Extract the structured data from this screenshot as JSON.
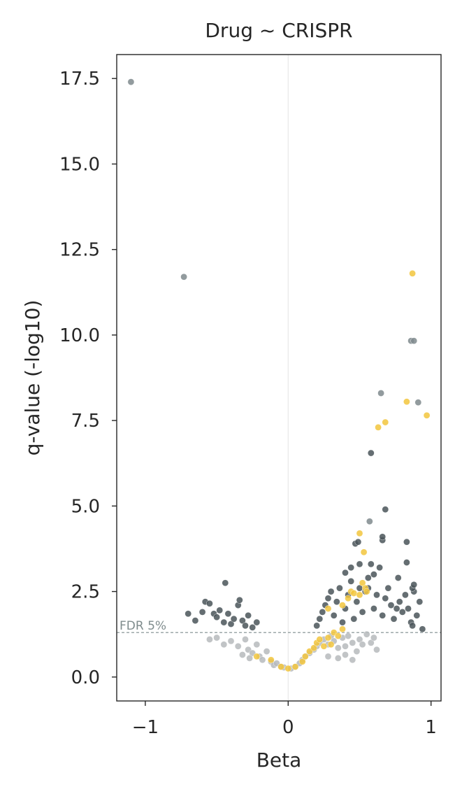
{
  "chart_data": {
    "type": "scatter",
    "title": "Drug ~ CRISPR",
    "xlabel": "Beta",
    "ylabel": "q-value (-log10)",
    "xlim": [
      -1.2,
      1.07
    ],
    "ylim": [
      -0.7,
      18.2
    ],
    "xticks": [
      -1,
      0,
      1
    ],
    "xtick_labels": [
      "−1",
      "0",
      "1"
    ],
    "yticks": [
      0.0,
      2.5,
      5.0,
      7.5,
      10.0,
      12.5,
      15.0,
      17.5
    ],
    "ytick_labels": [
      "0.0",
      "2.5",
      "5.0",
      "7.5",
      "10.0",
      "12.5",
      "15.0",
      "17.5"
    ],
    "grid": false,
    "zero_line": {
      "x": 0,
      "color": "#e8e8e8"
    },
    "threshold": {
      "y": 1.3,
      "label": "FDR 5%",
      "color": "#7f8c8d"
    },
    "series": [
      {
        "color": "#b6babc",
        "points": [
          [
            -0.45,
            0.95
          ],
          [
            -0.4,
            1.05
          ],
          [
            -0.35,
            0.9
          ],
          [
            -0.3,
            1.1
          ],
          [
            -0.28,
            0.8
          ],
          [
            -0.25,
            0.7
          ],
          [
            -0.22,
            0.95
          ],
          [
            -0.2,
            0.6
          ],
          [
            -0.18,
            0.5
          ],
          [
            -0.15,
            0.75
          ],
          [
            -0.12,
            0.45
          ],
          [
            -0.1,
            0.35
          ],
          [
            -0.08,
            0.4
          ],
          [
            -0.05,
            0.3
          ],
          [
            -0.03,
            0.28
          ],
          [
            0.02,
            0.25
          ],
          [
            0.05,
            0.3
          ],
          [
            0.08,
            0.4
          ],
          [
            0.1,
            0.5
          ],
          [
            0.12,
            0.6
          ],
          [
            0.15,
            0.7
          ],
          [
            0.18,
            0.8
          ],
          [
            0.2,
            0.9
          ],
          [
            0.22,
            1.0
          ],
          [
            0.25,
            1.1
          ],
          [
            0.28,
            0.95
          ],
          [
            0.3,
            1.2
          ],
          [
            0.32,
            1.05
          ],
          [
            0.35,
            0.85
          ],
          [
            0.38,
            1.15
          ],
          [
            0.4,
            0.9
          ],
          [
            0.42,
            1.2
          ],
          [
            0.45,
            1.0
          ],
          [
            0.48,
            0.75
          ],
          [
            0.5,
            1.1
          ],
          [
            0.52,
            0.95
          ],
          [
            0.55,
            1.25
          ],
          [
            0.58,
            1.0
          ],
          [
            0.6,
            1.15
          ],
          [
            0.62,
            0.8
          ],
          [
            -0.5,
            1.15
          ],
          [
            -0.55,
            1.1
          ],
          [
            -0.32,
            0.65
          ],
          [
            -0.27,
            0.55
          ],
          [
            0.28,
            0.6
          ],
          [
            0.35,
            0.55
          ],
          [
            0.4,
            0.65
          ],
          [
            0.45,
            0.5
          ]
        ]
      },
      {
        "color": "#4a5559",
        "points": [
          [
            -0.7,
            1.85
          ],
          [
            -0.65,
            1.65
          ],
          [
            -0.6,
            1.9
          ],
          [
            -0.58,
            2.2
          ],
          [
            -0.55,
            2.15
          ],
          [
            -0.52,
            1.85
          ],
          [
            -0.5,
            1.75
          ],
          [
            -0.48,
            1.95
          ],
          [
            -0.45,
            1.6
          ],
          [
            -0.44,
            2.75
          ],
          [
            -0.42,
            1.85
          ],
          [
            -0.4,
            1.55
          ],
          [
            -0.38,
            1.7
          ],
          [
            -0.35,
            2.1
          ],
          [
            -0.34,
            2.25
          ],
          [
            -0.32,
            1.65
          ],
          [
            -0.3,
            1.5
          ],
          [
            -0.28,
            1.8
          ],
          [
            -0.25,
            1.45
          ],
          [
            -0.22,
            1.6
          ],
          [
            0.2,
            1.5
          ],
          [
            0.22,
            1.7
          ],
          [
            0.24,
            1.9
          ],
          [
            0.26,
            2.1
          ],
          [
            0.28,
            2.3
          ],
          [
            0.3,
            2.5
          ],
          [
            0.32,
            1.8
          ],
          [
            0.34,
            2.2
          ],
          [
            0.36,
            2.6
          ],
          [
            0.38,
            1.6
          ],
          [
            0.4,
            2.0
          ],
          [
            0.42,
            2.4
          ],
          [
            0.44,
            2.8
          ],
          [
            0.46,
            1.7
          ],
          [
            0.48,
            2.2
          ],
          [
            0.5,
            2.6
          ],
          [
            0.52,
            1.9
          ],
          [
            0.54,
            2.5
          ],
          [
            0.56,
            2.9
          ],
          [
            0.58,
            3.3
          ],
          [
            0.6,
            2.0
          ],
          [
            0.62,
            2.4
          ],
          [
            0.64,
            3.2
          ],
          [
            0.66,
            1.8
          ],
          [
            0.68,
            2.3
          ],
          [
            0.7,
            2.6
          ],
          [
            0.72,
            2.1
          ],
          [
            0.74,
            1.7
          ],
          [
            0.76,
            2.0
          ],
          [
            0.78,
            2.2
          ],
          [
            0.8,
            1.9
          ],
          [
            0.82,
            2.4
          ],
          [
            0.84,
            2.0
          ],
          [
            0.86,
            1.6
          ],
          [
            0.88,
            2.5
          ],
          [
            0.9,
            1.8
          ],
          [
            0.92,
            2.2
          ],
          [
            0.47,
            3.9
          ],
          [
            0.49,
            3.95
          ],
          [
            0.58,
            6.55
          ],
          [
            0.66,
            4.0
          ],
          [
            0.66,
            4.1
          ],
          [
            0.68,
            4.9
          ],
          [
            0.77,
            2.9
          ],
          [
            0.83,
            3.95
          ],
          [
            0.83,
            3.35
          ],
          [
            0.87,
            2.6
          ],
          [
            0.88,
            2.7
          ],
          [
            0.87,
            1.5
          ],
          [
            0.94,
            1.4
          ],
          [
            0.44,
            3.2
          ],
          [
            0.5,
            3.3
          ],
          [
            0.56,
            2.6
          ],
          [
            0.6,
            3.0
          ],
          [
            0.4,
            3.05
          ]
        ]
      },
      {
        "color": "#7f8a8d",
        "points": [
          [
            -1.1,
            17.4
          ],
          [
            -0.73,
            11.7
          ],
          [
            0.65,
            8.3
          ],
          [
            0.86,
            9.83
          ],
          [
            0.88,
            9.83
          ],
          [
            0.91,
            8.03
          ],
          [
            0.57,
            4.55
          ]
        ]
      },
      {
        "color": "#f2c53d",
        "points": [
          [
            -0.22,
            0.6
          ],
          [
            -0.12,
            0.5
          ],
          [
            -0.05,
            0.3
          ],
          [
            0.0,
            0.25
          ],
          [
            0.05,
            0.3
          ],
          [
            0.1,
            0.45
          ],
          [
            0.12,
            0.6
          ],
          [
            0.15,
            0.75
          ],
          [
            0.18,
            0.85
          ],
          [
            0.2,
            1.0
          ],
          [
            0.22,
            1.1
          ],
          [
            0.25,
            0.9
          ],
          [
            0.28,
            1.15
          ],
          [
            0.3,
            0.95
          ],
          [
            0.32,
            1.3
          ],
          [
            0.35,
            1.2
          ],
          [
            0.38,
            1.4
          ],
          [
            0.28,
            2.0
          ],
          [
            0.38,
            2.1
          ],
          [
            0.42,
            2.3
          ],
          [
            0.44,
            2.5
          ],
          [
            0.46,
            2.45
          ],
          [
            0.5,
            2.4
          ],
          [
            0.52,
            2.75
          ],
          [
            0.54,
            2.6
          ],
          [
            0.55,
            2.5
          ],
          [
            0.5,
            4.2
          ],
          [
            0.53,
            3.65
          ],
          [
            0.63,
            7.3
          ],
          [
            0.68,
            7.45
          ],
          [
            0.83,
            8.05
          ],
          [
            0.87,
            11.8
          ],
          [
            0.97,
            7.65
          ]
        ]
      }
    ]
  }
}
